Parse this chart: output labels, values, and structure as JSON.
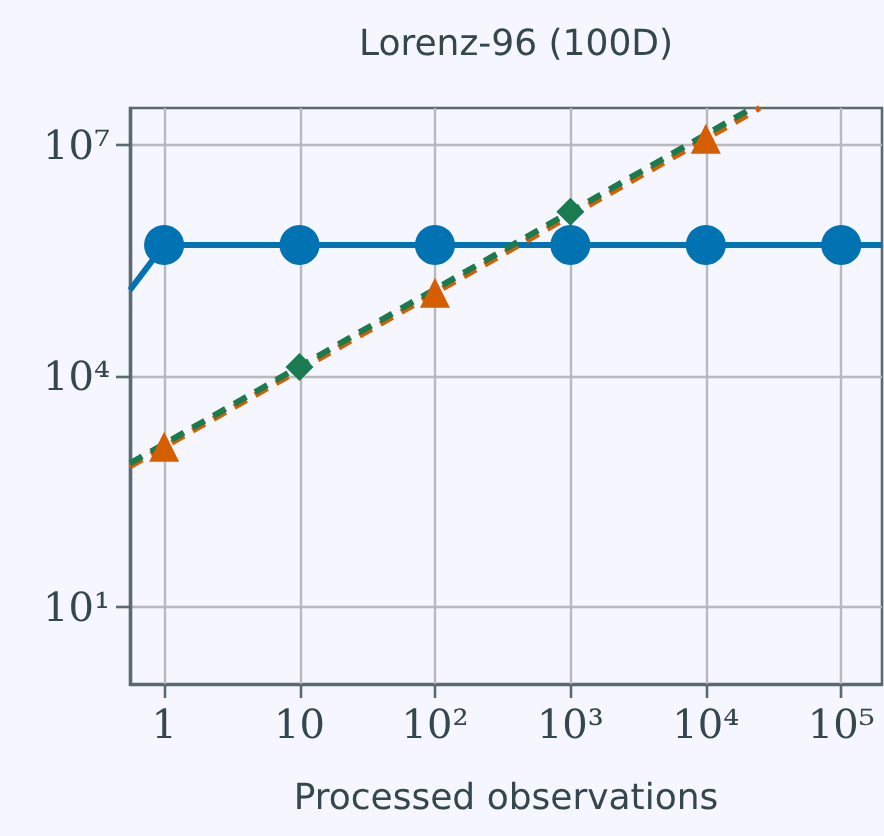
{
  "chart_data": {
    "type": "line",
    "title": "Lorenz-96 (100D)",
    "xlabel": "Processed observations",
    "log": "xy",
    "grid": true,
    "xlim": [
      0.56,
      200000
    ],
    "ylim": [
      1,
      30000000
    ],
    "xticks": [
      1,
      10,
      {
        "value": 100,
        "label": "10²"
      },
      {
        "value": 1000,
        "label": "10³"
      },
      {
        "value": 10000,
        "label": "10⁴"
      },
      {
        "value": 100000,
        "label": "10⁵"
      }
    ],
    "yticks": [
      {
        "value": 10,
        "label": "10¹"
      },
      {
        "value": 10000,
        "label": "10⁴"
      },
      {
        "value": 10000000,
        "label": "10⁷"
      }
    ],
    "series": [
      {
        "color": "#0173b2",
        "marker": "none",
        "line_style": "solid",
        "x": [
          0.56,
          1,
          200000
        ],
        "values": [
          130000,
          500000,
          500000
        ]
      },
      {
        "color": "#0173b2",
        "type": "scatter",
        "marker": "circle",
        "x": [
          1,
          10,
          100,
          1000,
          10000,
          100000
        ],
        "values": [
          500000,
          500000,
          500000,
          500000,
          500000,
          500000
        ]
      },
      {
        "color": "#d55e00",
        "marker": "none",
        "line_style": "dashed",
        "x": [
          0.56,
          25000
        ],
        "values": [
          670,
          30000000
        ]
      },
      {
        "color": "#1a7a50",
        "marker": "none",
        "line_style": "dashed",
        "x": [
          0.56,
          22000
        ],
        "values": [
          730,
          30000000
        ]
      },
      {
        "color": "#d55e00",
        "type": "scatter",
        "marker": "triangle",
        "x": [
          1,
          100,
          10000
        ],
        "values": [
          1200,
          120000,
          12000000
        ]
      },
      {
        "color": "#1a7a50",
        "type": "scatter",
        "marker": "diamond",
        "x": [
          10,
          1000
        ],
        "values": [
          13000,
          1350000
        ]
      }
    ]
  }
}
